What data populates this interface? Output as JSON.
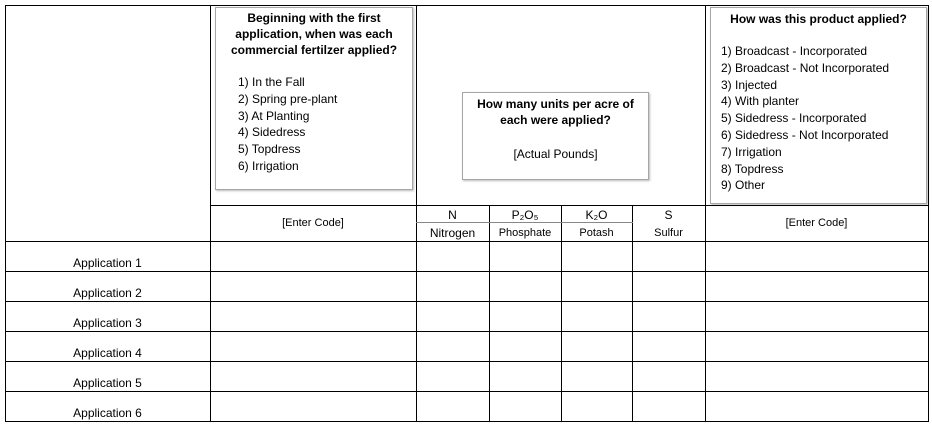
{
  "question_1": {
    "title": "Beginning with the first application, when was each commercial fertilzer applied?",
    "options": [
      "1) In the Fall",
      "2) Spring pre-plant",
      "3) At Planting",
      "4) Sidedress",
      "5) Topdress",
      "6) Irrigation"
    ]
  },
  "question_2": {
    "title": "How many units per acre of each were applied?",
    "note": "[Actual Pounds]"
  },
  "question_3": {
    "title": "How was this product applied?",
    "options": [
      "1) Broadcast - Incorporated",
      "2) Broadcast - Not Incorporated",
      "3) Injected",
      "4) With planter",
      "5) Sidedress - Incorporated",
      "6) Sidedress - Not Incorporated",
      "7) Irrigation",
      "8) Topdress",
      "9) Other"
    ]
  },
  "columns": {
    "timing_code": "[Enter Code]",
    "nutrients": [
      {
        "symbol": "N",
        "name": "Nitrogen"
      },
      {
        "symbol": "P₂O₅",
        "name": "Phosphate"
      },
      {
        "symbol": "K₂O",
        "name": "Potash"
      },
      {
        "symbol": "S",
        "name": "Sulfur"
      }
    ],
    "method_code": "[Enter Code]"
  },
  "rows": [
    "Application 1",
    "Application 2",
    "Application 3",
    "Application 4",
    "Application 5",
    "Application 6"
  ]
}
